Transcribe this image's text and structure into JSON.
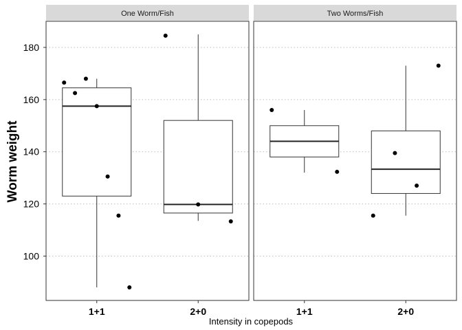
{
  "chart_data": {
    "type": "boxplot",
    "xlabel": "Intensity in copepods",
    "ylabel": "Worm weight",
    "ylim": [
      83,
      190
    ],
    "yticks": [
      100,
      120,
      140,
      160,
      180
    ],
    "categories": [
      "1+1",
      "2+0"
    ],
    "grid": "horizontal dotted major lines",
    "panels": [
      {
        "title": "One Worm/Fish",
        "boxes": [
          {
            "category": "1+1",
            "whisker_low": 88,
            "q1": 123,
            "median": 157.5,
            "q3": 164.5,
            "whisker_high": 168,
            "points": [
              166.5,
              162.5,
              168,
              157.5,
              130.5,
              115.5,
              88
            ]
          },
          {
            "category": "2+0",
            "whisker_low": 113.5,
            "q1": 116.5,
            "median": 119.8,
            "q3": 152,
            "whisker_high": 185,
            "points": [
              184.5,
              119.8,
              113.3
            ]
          }
        ]
      },
      {
        "title": "Two Worms/Fish",
        "boxes": [
          {
            "category": "1+1",
            "whisker_low": 132,
            "q1": 138,
            "median": 144,
            "q3": 150,
            "whisker_high": 156,
            "points": [
              156,
              132.3
            ]
          },
          {
            "category": "2+0",
            "whisker_low": 115.5,
            "q1": 124,
            "median": 133.3,
            "q3": 148,
            "whisker_high": 173,
            "points": [
              115.5,
              139.5,
              127,
              173
            ]
          }
        ]
      }
    ]
  }
}
